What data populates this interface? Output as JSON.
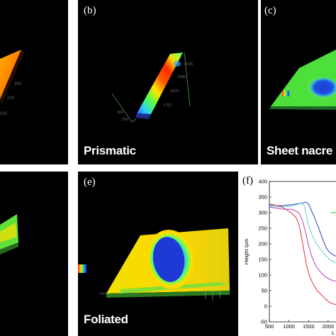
{
  "panels": {
    "a": {
      "label": ""
    },
    "b": {
      "label": "(b)",
      "caption": "Prismatic"
    },
    "c": {
      "label": "(c)",
      "caption": "Sheet nacre"
    },
    "d": {
      "label": ""
    },
    "e": {
      "label": "(e)",
      "caption": "Foliated"
    },
    "f": {
      "label": "(f)"
    }
  },
  "chart_data": {
    "type": "line",
    "ylabel": "Height /μm",
    "xlabel": "L",
    "x_ticks": [
      "500",
      "1000",
      "1500",
      "2000"
    ],
    "y_ticks": [
      "-50",
      "0",
      "50",
      "100",
      "150",
      "200",
      "250",
      "300",
      "350",
      "400"
    ],
    "xlim": [
      500,
      2200
    ],
    "ylim": [
      -50,
      400
    ],
    "series": [
      {
        "color": "#2a3fbf",
        "x": [
          500,
          800,
          1100,
          1300,
          1430,
          1500,
          1560,
          1650,
          1760,
          1860,
          1960,
          2060,
          2200
        ],
        "y": [
          325,
          322,
          326,
          330,
          334,
          328,
          310,
          285,
          250,
          215,
          185,
          170,
          160
        ]
      },
      {
        "color": "#5fd3d0",
        "x": [
          500,
          800,
          1100,
          1300,
          1380,
          1430,
          1500,
          1600,
          1700,
          1820,
          1960,
          2060,
          2200
        ],
        "y": [
          320,
          318,
          322,
          330,
          326,
          300,
          260,
          225,
          200,
          180,
          160,
          148,
          140
        ]
      },
      {
        "color": "#b23fb8",
        "x": [
          500,
          800,
          1100,
          1250,
          1330,
          1420,
          1500,
          1580,
          1680,
          1800,
          1920,
          2060,
          2200
        ],
        "y": [
          318,
          312,
          310,
          300,
          280,
          240,
          195,
          160,
          130,
          110,
          95,
          85,
          80
        ]
      },
      {
        "color": "#e0303a",
        "x": [
          500,
          800,
          1050,
          1180,
          1260,
          1330,
          1400,
          1460,
          1530,
          1620,
          1720,
          1800,
          1880,
          1960,
          2060,
          2200
        ],
        "y": [
          328,
          320,
          300,
          285,
          260,
          215,
          165,
          125,
          95,
          70,
          50,
          40,
          30,
          20,
          10,
          5
        ]
      },
      {
        "color": "#38b838",
        "x": [
          2060,
          2200
        ],
        "y": [
          300,
          300
        ]
      }
    ]
  },
  "colors": {
    "background": "#000000",
    "green": "#2fd12f",
    "blue": "#1b3fd6",
    "red": "#e83025",
    "orange": "#ff8a00"
  }
}
